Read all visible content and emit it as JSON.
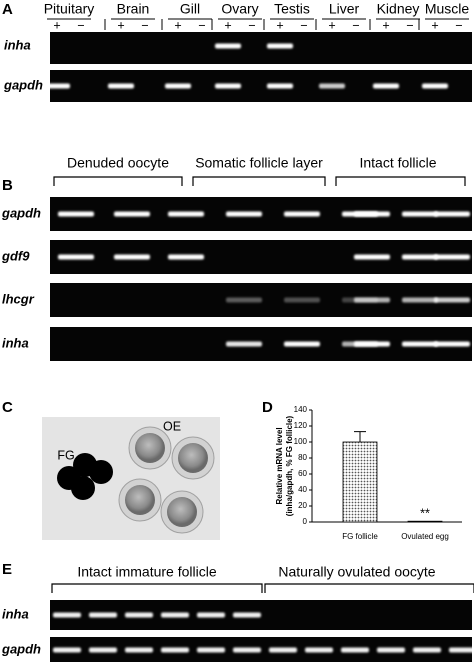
{
  "panels": {
    "a": {
      "letter": "A",
      "tissues": [
        "Pituitary",
        "Brain",
        "Gill",
        "Ovary",
        "Testis",
        "Liver",
        "Kidney",
        "Muscle"
      ],
      "plus": "+",
      "minus": "−",
      "genes": [
        "inha",
        "gapdh"
      ]
    },
    "b": {
      "letter": "B",
      "groups": [
        "Denuded oocyte",
        "Somatic follicle layer",
        "Intact follicle"
      ],
      "genes": [
        "gapdh",
        "gdf9",
        "lhcgr",
        "inha"
      ]
    },
    "c": {
      "letter": "C",
      "labels": [
        "FG",
        "OE"
      ]
    },
    "d": {
      "letter": "D"
    },
    "e": {
      "letter": "E",
      "groups": [
        "Intact immature follicle",
        "Naturally ovulated oocyte"
      ],
      "genes": [
        "inha",
        "gapdh"
      ]
    }
  },
  "chart_data": {
    "type": "bar",
    "ylabel": [
      "Relative mRNA level",
      "(inha/gapdh, % FG follicle)"
    ],
    "categories": [
      "FG follicle",
      "Ovulated egg"
    ],
    "values": [
      100,
      1
    ],
    "errors": [
      13,
      0
    ],
    "annotation": "**",
    "color": "#bbbbbb",
    "ylim": [
      0,
      140
    ],
    "yticks": [
      0,
      20,
      40,
      60,
      80,
      100,
      120,
      140
    ]
  }
}
